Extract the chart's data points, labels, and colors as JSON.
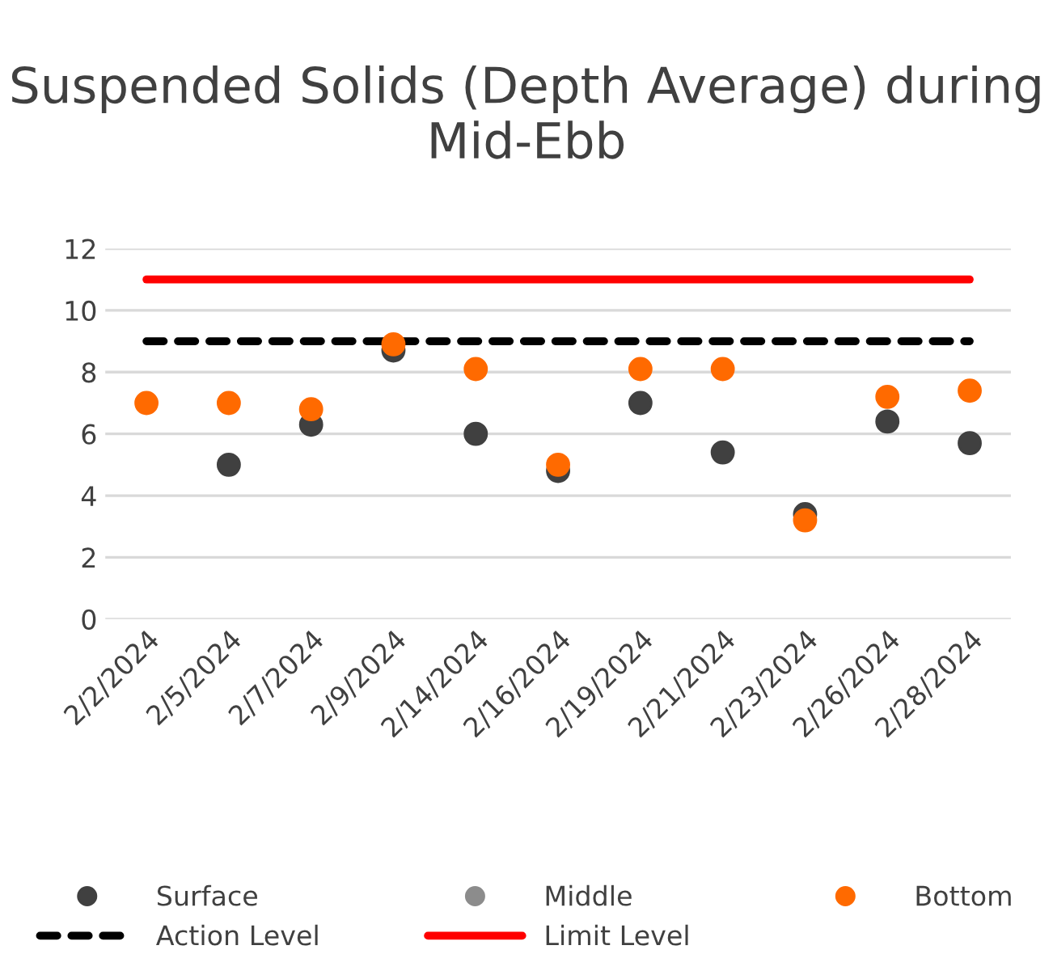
{
  "chart_data": {
    "type": "scatter",
    "title": "Suspended Solids (Depth Average) during Mid-Ebb",
    "categories": [
      "2/2/2024",
      "2/5/2024",
      "2/7/2024",
      "2/9/2024",
      "2/14/2024",
      "2/16/2024",
      "2/19/2024",
      "2/21/2024",
      "2/23/2024",
      "2/26/2024",
      "2/28/2024"
    ],
    "series": [
      {
        "name": "Surface",
        "color": "#404040",
        "values": [
          null,
          5.0,
          6.3,
          8.7,
          6.0,
          4.8,
          7.0,
          5.4,
          3.4,
          6.4,
          5.7
        ]
      },
      {
        "name": "Middle",
        "color": "#8c8c8c",
        "values": [
          null,
          null,
          null,
          null,
          null,
          null,
          null,
          null,
          null,
          null,
          null
        ]
      },
      {
        "name": "Bottom",
        "color": "#ff6a00",
        "values": [
          7.0,
          7.0,
          6.8,
          8.9,
          8.1,
          5.0,
          8.1,
          8.1,
          3.2,
          7.2,
          7.4
        ]
      },
      {
        "name": "Action Level",
        "type": "line",
        "color": "#000000",
        "line_style": "dashed",
        "marker": "none",
        "values": [
          9,
          9,
          9,
          9,
          9,
          9,
          9,
          9,
          9,
          9,
          9
        ]
      },
      {
        "name": "Limit Level",
        "type": "line",
        "color": "#ff0000",
        "line_style": "solid",
        "marker": "none",
        "values": [
          11,
          11,
          11,
          11,
          11,
          11,
          11,
          11,
          11,
          11,
          11
        ]
      }
    ],
    "ylim": [
      0,
      12
    ],
    "yticks": [
      0,
      2,
      4,
      6,
      8,
      10,
      12
    ],
    "grid": "y",
    "legend": "bottom",
    "marker": "circle"
  }
}
